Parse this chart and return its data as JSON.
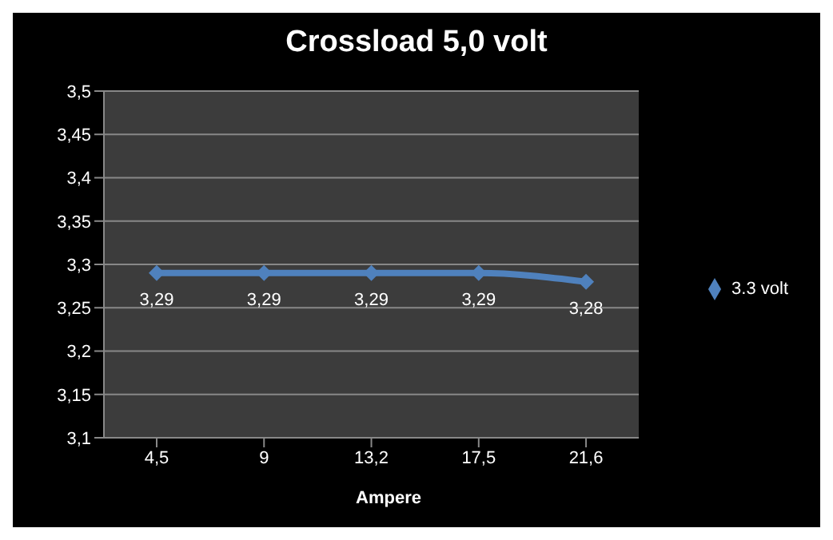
{
  "chart_data": {
    "type": "line",
    "title": "Crossload 5,0 volt",
    "xlabel": "Ampere",
    "categories": [
      "4,5",
      "9",
      "13,2",
      "17,5",
      "21,6"
    ],
    "series": [
      {
        "name": "3.3 volt",
        "color": "#4f81bd",
        "values": [
          3.29,
          3.29,
          3.29,
          3.29,
          3.28
        ],
        "value_labels": [
          "3,29",
          "3,29",
          "3,29",
          "3,29",
          "3,28"
        ]
      }
    ],
    "ylim": [
      3.1,
      3.5
    ],
    "yticks": [
      {
        "value": 3.1,
        "label": "3,1"
      },
      {
        "value": 3.15,
        "label": "3,15"
      },
      {
        "value": 3.2,
        "label": "3,2"
      },
      {
        "value": 3.25,
        "label": "3,25"
      },
      {
        "value": 3.3,
        "label": "3,3"
      },
      {
        "value": 3.35,
        "label": "3,35"
      },
      {
        "value": 3.4,
        "label": "3,4"
      },
      {
        "value": 3.45,
        "label": "3,45"
      },
      {
        "value": 3.5,
        "label": "3,5"
      }
    ],
    "grid": "y",
    "legend": "right",
    "marker": "diamond",
    "line_style": "solid"
  }
}
